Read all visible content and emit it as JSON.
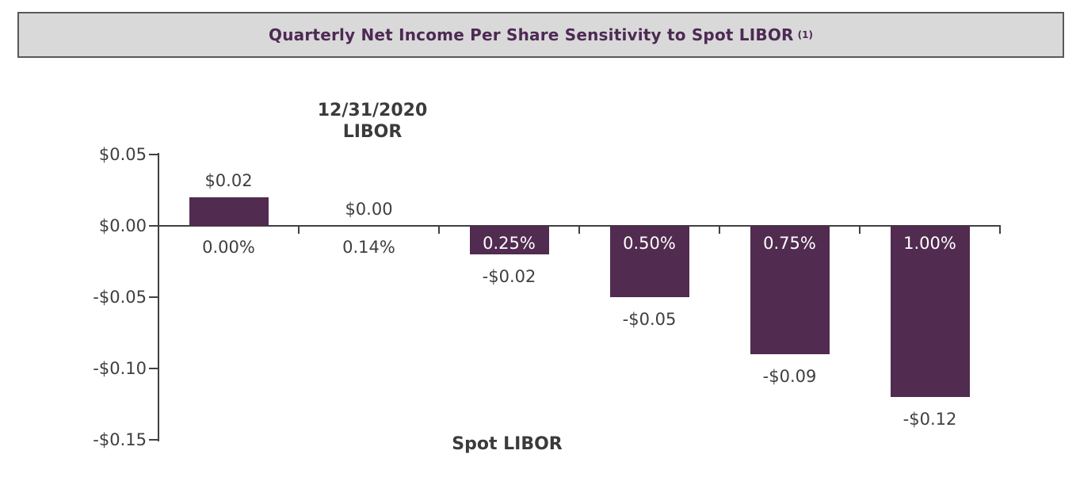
{
  "header": {
    "title": "Quarterly Net Income Per Share Sensitivity to Spot LIBOR",
    "superscript": "(1)"
  },
  "annotation": {
    "line1": "12/31/2020",
    "line2": "LIBOR"
  },
  "chart_data": {
    "type": "bar",
    "title": "Quarterly Net Income Per Share Sensitivity to Spot LIBOR (1)",
    "xlabel": "Spot LIBOR",
    "ylabel": "",
    "categories": [
      "0.00%",
      "0.14%",
      "0.25%",
      "0.50%",
      "0.75%",
      "1.00%"
    ],
    "values": [
      0.02,
      0.0,
      -0.02,
      -0.05,
      -0.09,
      -0.12
    ],
    "bar_labels": [
      "$0.02",
      "$0.00",
      "-$0.02",
      "-$0.05",
      "-$0.09",
      "-$0.12"
    ],
    "annotation": "12/31/2020 LIBOR",
    "y_ticks": [
      {
        "label": "$0.05",
        "value": 0.05
      },
      {
        "label": "$0.00",
        "value": 0.0
      },
      {
        "label": "-$0.05",
        "value": -0.05
      },
      {
        "label": "-$0.10",
        "value": -0.1
      },
      {
        "label": "-$0.15",
        "value": -0.15
      }
    ],
    "ylim": [
      -0.15,
      0.05
    ],
    "grid": false,
    "legend": false,
    "bar_color": "#512b50",
    "inside_label_color": "#ffffff",
    "text_color": "#3f3f3f",
    "axis_color": "#404040"
  },
  "colors": {
    "title_text": "#4d2a54",
    "title_box_bg": "#d9d9d9",
    "title_box_border": "#595959"
  }
}
